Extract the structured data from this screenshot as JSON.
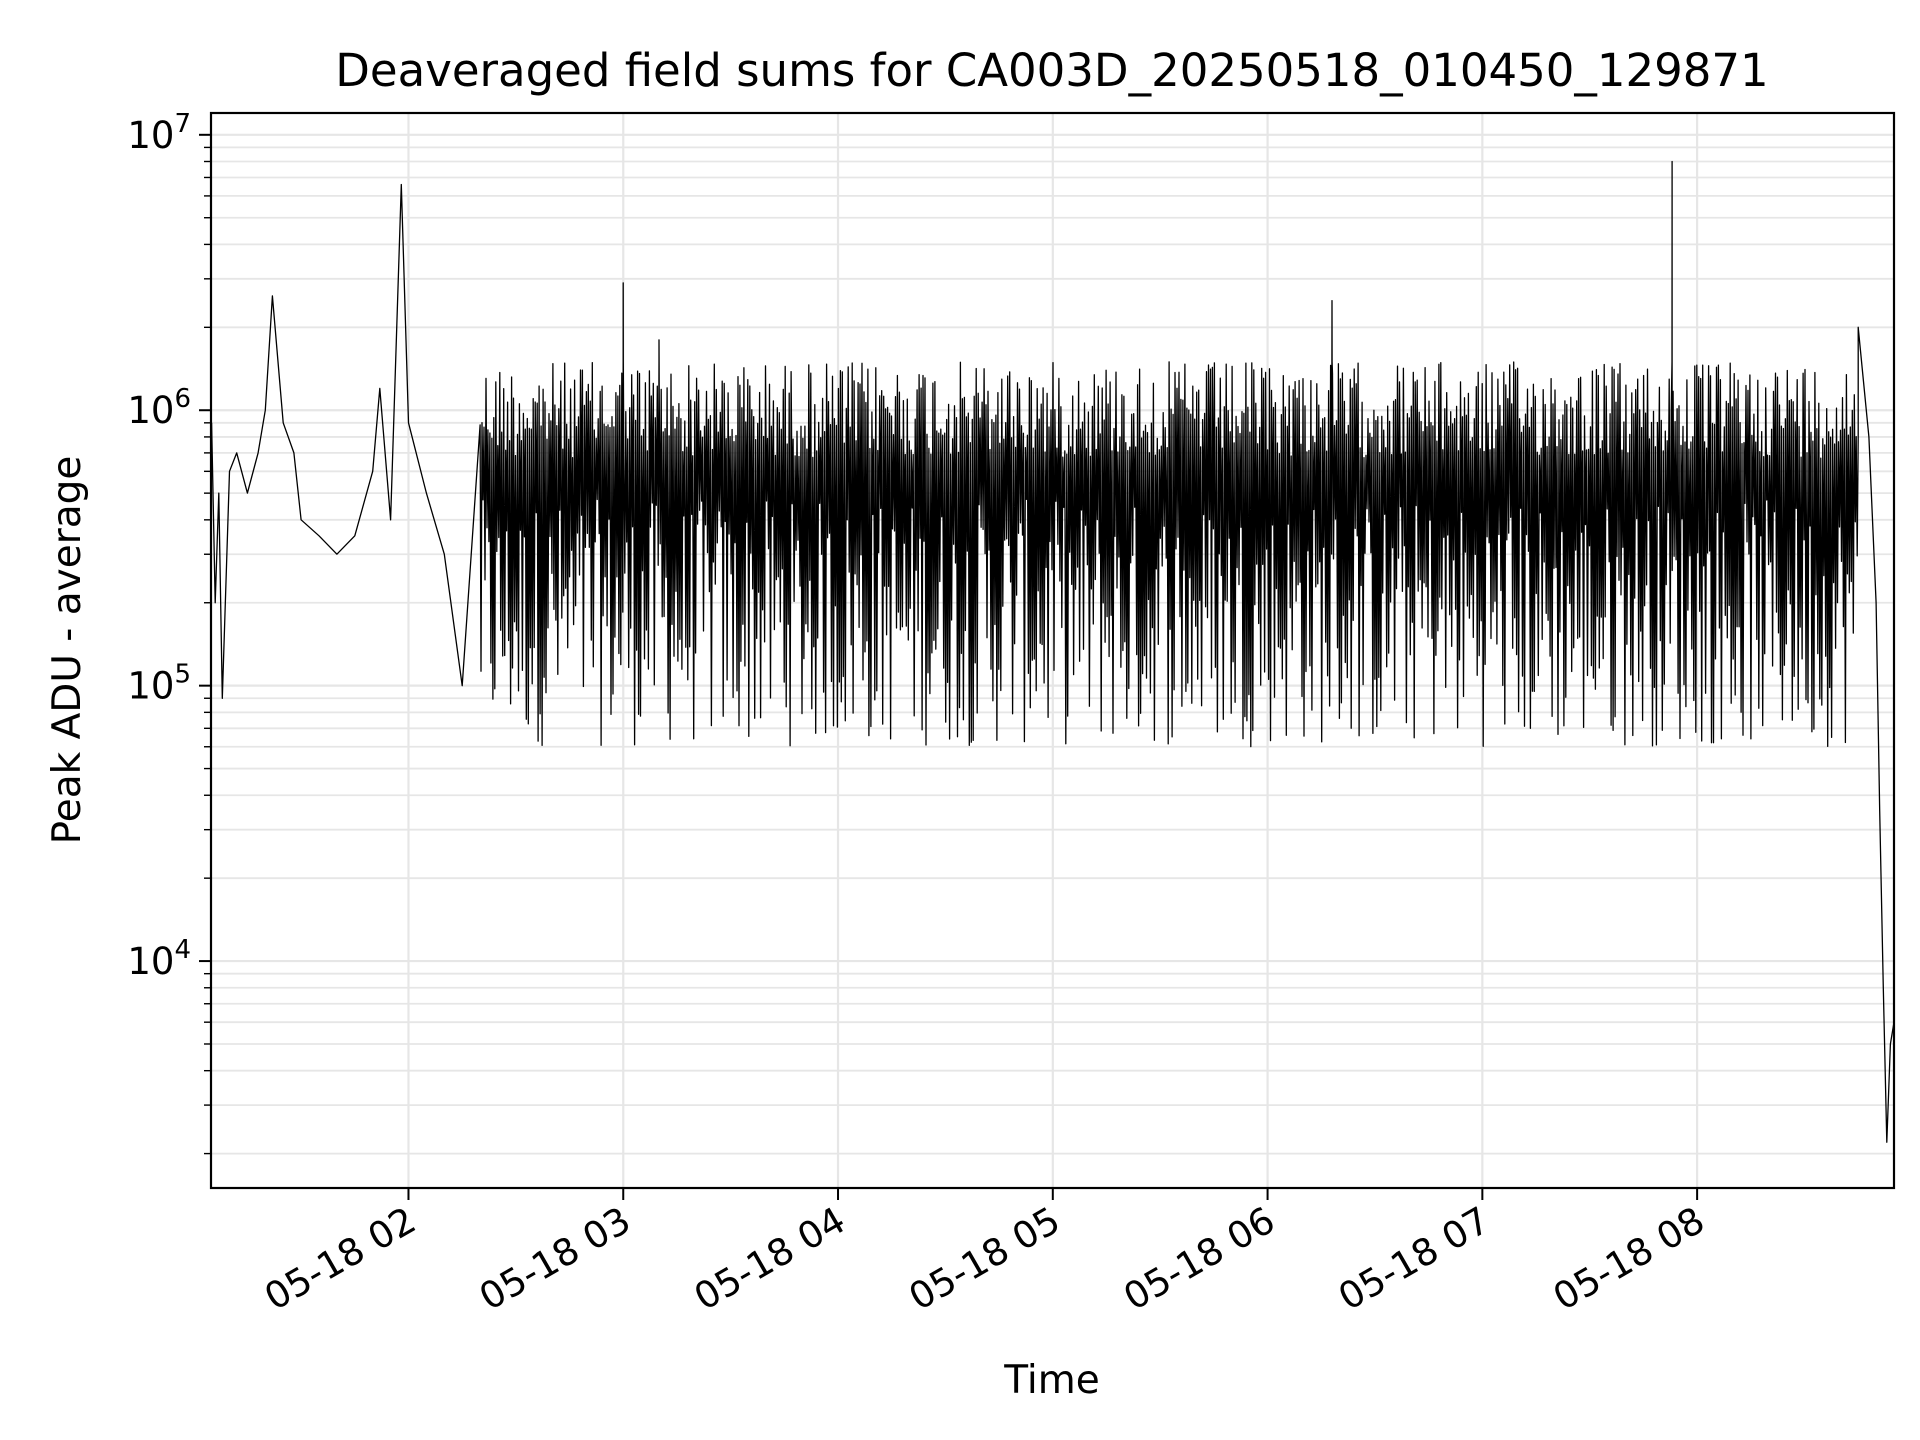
{
  "chart_data": {
    "type": "line",
    "title": "Deaveraged field sums for CA003D_20250518_010450_129871",
    "xlabel": "Time",
    "ylabel": "Peak ADU - average",
    "yscale": "log",
    "grid": "on (major and minor)",
    "line_color": "#000000",
    "xlim": [
      "2025-05-18 01:04:50",
      "2025-05-18 08:55:00"
    ],
    "ylim": [
      1500,
      12000000
    ],
    "x_ticks": [
      "05-18 02",
      "05-18 03",
      "05-18 04",
      "05-18 05",
      "05-18 06",
      "05-18 07",
      "05-18 08"
    ],
    "y_ticks": [
      {
        "base": "10",
        "exp": "4",
        "value": 10000
      },
      {
        "base": "10",
        "exp": "5",
        "value": 100000
      },
      {
        "base": "10",
        "exp": "6",
        "value": 1000000
      },
      {
        "base": "10",
        "exp": "7",
        "value": 10000000
      }
    ],
    "series": [
      {
        "points": [
          [
            "2025-05-18 01:05",
            900000
          ],
          [
            "2025-05-18 01:06",
            200000
          ],
          [
            "2025-05-18 01:07",
            500000
          ],
          [
            "2025-05-18 01:08",
            90000
          ],
          [
            "2025-05-18 01:10",
            600000
          ],
          [
            "2025-05-18 01:12",
            700000
          ],
          [
            "2025-05-18 01:15",
            500000
          ],
          [
            "2025-05-18 01:18",
            700000
          ],
          [
            "2025-05-18 01:20",
            1000000
          ],
          [
            "2025-05-18 01:22",
            2600000
          ],
          [
            "2025-05-18 01:25",
            900000
          ],
          [
            "2025-05-18 01:28",
            700000
          ],
          [
            "2025-05-18 01:30",
            400000
          ],
          [
            "2025-05-18 01:35",
            350000
          ],
          [
            "2025-05-18 01:40",
            300000
          ],
          [
            "2025-05-18 01:45",
            350000
          ],
          [
            "2025-05-18 01:50",
            600000
          ],
          [
            "2025-05-18 01:52",
            1200000
          ],
          [
            "2025-05-18 01:55",
            400000
          ],
          [
            "2025-05-18 01:58",
            6600000
          ],
          [
            "2025-05-18 02:00",
            900000
          ],
          [
            "2025-05-18 02:05",
            500000
          ],
          [
            "2025-05-18 02:10",
            300000
          ],
          [
            "2025-05-18 02:15",
            100000
          ],
          [
            "2025-05-18 02:20",
            80000
          ],
          [
            "2025-05-18 02:30",
            75000
          ],
          [
            "2025-05-18 02:40",
            70000
          ],
          [
            "2025-05-18 02:45",
            1500000
          ],
          [
            "2025-05-18 03:00",
            2900000
          ],
          [
            "2025-05-18 03:10",
            1800000
          ],
          [
            "2025-05-18 03:30",
            1400000
          ],
          [
            "2025-05-18 04:00",
            1500000
          ],
          [
            "2025-05-18 04:30",
            1500000
          ],
          [
            "2025-05-18 05:00",
            1500000
          ],
          [
            "2025-05-18 05:30",
            1400000
          ],
          [
            "2025-05-18 06:00",
            1400000
          ],
          [
            "2025-05-18 06:18",
            2500000
          ],
          [
            "2025-05-18 06:30",
            1400000
          ],
          [
            "2025-05-18 07:00",
            1400000
          ],
          [
            "2025-05-18 07:30",
            1400000
          ],
          [
            "2025-05-18 07:53",
            8000000
          ],
          [
            "2025-05-18 08:00",
            1300000
          ],
          [
            "2025-05-18 08:20",
            1200000
          ],
          [
            "2025-05-18 08:30",
            1000000
          ],
          [
            "2025-05-18 08:40",
            1200000
          ],
          [
            "2025-05-18 08:45",
            2000000
          ],
          [
            "2025-05-18 08:48",
            800000
          ],
          [
            "2025-05-18 08:50",
            200000
          ],
          [
            "2025-05-18 08:51",
            35000
          ],
          [
            "2025-05-18 08:52",
            8000
          ],
          [
            "2025-05-18 08:53",
            2200
          ],
          [
            "2025-05-18 08:54",
            5000
          ],
          [
            "2025-05-18 08:55",
            6000
          ]
        ]
      }
    ],
    "dense_band": {
      "from": "2025-05-18 02:20",
      "to": "2025-05-18 08:45",
      "low": 60000,
      "high": 1500000
    }
  }
}
